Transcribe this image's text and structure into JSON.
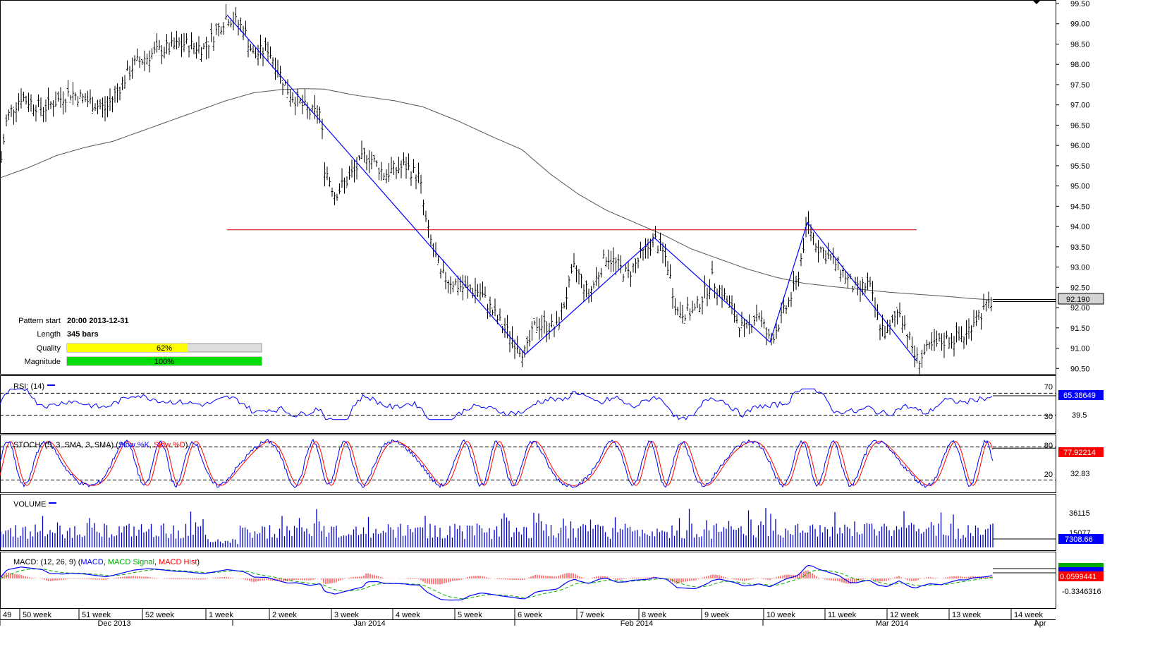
{
  "pattern_info": {
    "start_label": "Pattern start",
    "start_value": "20:00 2013-12-31",
    "length_label": "Length",
    "length_value": "345 bars",
    "quality_label": "Quality",
    "quality_value": 0.62,
    "quality_text": "62%",
    "magnitude_label": "Magnitude",
    "magnitude_value": 1.0,
    "magnitude_text": "100%"
  },
  "colors": {
    "price": "#000000",
    "pattern_line": "#0000ff",
    "resistance": "#cc0000",
    "sma": "#555555",
    "rsi": "#0000ff",
    "stoch_k": "#0000ff",
    "stoch_d": "#ff0000",
    "volume": "#0000cc",
    "macd": "#0000ff",
    "macd_signal": "#00aa00",
    "macd_hist": "#ff0000",
    "quality_fill": "#ffff00",
    "magnitude_fill": "#00dd00"
  },
  "panels": {
    "rsi": {
      "label": "RSI: (14)",
      "levels": [
        "70",
        "30"
      ],
      "axis": [
        "39.5"
      ],
      "value_box": "65.38649"
    },
    "stoch": {
      "label_prefix": "STOCH: (5, 3, SMA, 3, SMA) (",
      "k_label": "Slow %K",
      "sep": ", ",
      "d_label": "Slow %D",
      "label_suffix": ")",
      "levels": [
        "80",
        "20"
      ],
      "axis": [
        "32.83"
      ],
      "value_box": "77.92214"
    },
    "volume": {
      "label": "VOLUME",
      "axis": [
        "36115",
        "15077"
      ],
      "value_box": "7308.66"
    },
    "macd": {
      "label_prefix": "MACD: (12, 26, 9) (",
      "macd_label": "MACD",
      "sep1": ", ",
      "signal_label": "MACD Signal",
      "sep2": ", ",
      "hist_label": "MACD Hist",
      "label_suffix": ")",
      "value_box": "0.0599441",
      "axis": [
        "-0.3346316"
      ]
    }
  },
  "x_axis": {
    "weeks": [
      "49",
      "50 week",
      "51 week",
      "52 week",
      "1 week",
      "2 week",
      "3 week",
      "4 week",
      "5 week",
      "6 week",
      "7 week",
      "8 week",
      "9 week",
      "10 week",
      "11 week",
      "12 week",
      "13 week",
      "14 week"
    ],
    "months": [
      "Dec 2013",
      "Jan 2014",
      "Feb 2014",
      "Mar 2014",
      "Apr"
    ]
  },
  "chart_data": {
    "type": "line",
    "instrument_axis": "price",
    "y_ticks": [
      "99.50",
      "99.00",
      "98.50",
      "98.00",
      "97.50",
      "97.00",
      "96.50",
      "96.00",
      "95.50",
      "95.00",
      "94.50",
      "94.00",
      "93.50",
      "93.00",
      "92.50",
      "92.00",
      "91.50",
      "91.00",
      "90.50"
    ],
    "ylim": [
      90.3,
      99.55
    ],
    "current_price": "92.190",
    "resistance_level": 93.92,
    "price_path": [
      [
        0,
        95.4
      ],
      [
        10,
        96.7
      ],
      [
        30,
        97.2
      ],
      [
        60,
        96.9
      ],
      [
        100,
        97.3
      ],
      [
        150,
        96.9
      ],
      [
        190,
        98.0
      ],
      [
        220,
        98.3
      ],
      [
        260,
        98.5
      ],
      [
        290,
        98.4
      ],
      [
        322,
        99.2
      ],
      [
        345,
        98.9
      ],
      [
        360,
        98.2
      ],
      [
        380,
        98.4
      ],
      [
        410,
        97.3
      ],
      [
        440,
        96.8
      ],
      [
        455,
        96.8
      ],
      [
        460,
        95.5
      ],
      [
        475,
        94.8
      ],
      [
        500,
        95.3
      ],
      [
        520,
        95.8
      ],
      [
        545,
        95.3
      ],
      [
        575,
        95.5
      ],
      [
        595,
        95.2
      ],
      [
        605,
        94.0
      ],
      [
        625,
        92.8
      ],
      [
        655,
        92.5
      ],
      [
        680,
        92.4
      ],
      [
        710,
        91.6
      ],
      [
        745,
        90.85
      ],
      [
        760,
        91.6
      ],
      [
        790,
        91.5
      ],
      [
        815,
        93.0
      ],
      [
        835,
        92.3
      ],
      [
        860,
        93.3
      ],
      [
        890,
        92.8
      ],
      [
        928,
        93.7
      ],
      [
        945,
        93.2
      ],
      [
        960,
        91.9
      ],
      [
        985,
        91.9
      ],
      [
        1010,
        92.7
      ],
      [
        1030,
        92.2
      ],
      [
        1055,
        91.4
      ],
      [
        1075,
        91.9
      ],
      [
        1092,
        91.15
      ],
      [
        1115,
        92.0
      ],
      [
        1130,
        92.6
      ],
      [
        1145,
        94.1
      ],
      [
        1160,
        93.5
      ],
      [
        1190,
        93.0
      ],
      [
        1215,
        92.4
      ],
      [
        1232,
        92.6
      ],
      [
        1245,
        91.7
      ],
      [
        1258,
        91.3
      ],
      [
        1275,
        92.0
      ],
      [
        1290,
        91.2
      ],
      [
        1300,
        90.7
      ],
      [
        1320,
        91.0
      ],
      [
        1340,
        91.2
      ],
      [
        1370,
        91.3
      ],
      [
        1380,
        91.7
      ],
      [
        1400,
        92.0
      ],
      [
        1408,
        92.2
      ]
    ],
    "sma_path": [
      [
        0,
        95.2
      ],
      [
        40,
        95.45
      ],
      [
        80,
        95.75
      ],
      [
        120,
        95.95
      ],
      [
        160,
        96.1
      ],
      [
        200,
        96.35
      ],
      [
        240,
        96.6
      ],
      [
        280,
        96.85
      ],
      [
        320,
        97.1
      ],
      [
        360,
        97.3
      ],
      [
        400,
        97.38
      ],
      [
        430,
        97.4
      ],
      [
        460,
        97.39
      ],
      [
        500,
        97.25
      ],
      [
        560,
        97.1
      ],
      [
        600,
        96.95
      ],
      [
        650,
        96.6
      ],
      [
        700,
        96.2
      ],
      [
        740,
        95.9
      ],
      [
        780,
        95.3
      ],
      [
        820,
        94.8
      ],
      [
        860,
        94.4
      ],
      [
        900,
        94.1
      ],
      [
        940,
        93.8
      ],
      [
        980,
        93.45
      ],
      [
        1020,
        93.2
      ],
      [
        1060,
        92.95
      ],
      [
        1100,
        92.75
      ],
      [
        1140,
        92.6
      ],
      [
        1180,
        92.52
      ],
      [
        1220,
        92.45
      ],
      [
        1260,
        92.38
      ],
      [
        1300,
        92.33
      ],
      [
        1340,
        92.28
      ],
      [
        1380,
        92.22
      ],
      [
        1408,
        92.19
      ]
    ],
    "zigzag": [
      [
        322,
        99.22
      ],
      [
        745,
        90.85
      ],
      [
        928,
        93.72
      ],
      [
        1092,
        91.15
      ],
      [
        1145,
        94.1
      ],
      [
        1300,
        90.68
      ]
    ]
  }
}
